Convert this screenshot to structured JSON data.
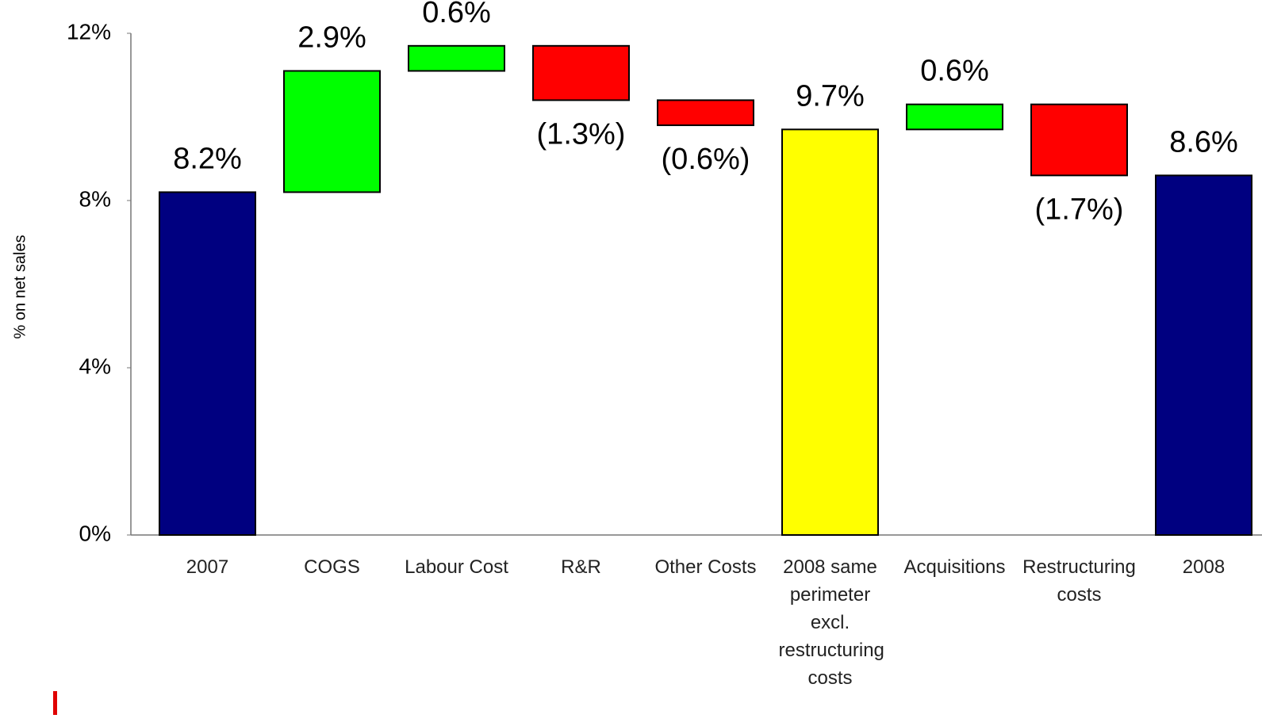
{
  "chart_data": {
    "type": "waterfall",
    "y_label": "% on net sales",
    "categories": [
      "2007",
      "COGS",
      "Labour Cost",
      "R&R",
      "Other Costs",
      "2008 same perimeter excl. restructuring costs",
      "Acquisitions",
      "Restructuring costs",
      "2008"
    ],
    "values": [
      8.2,
      2.9,
      0.6,
      -1.3,
      -0.6,
      9.7,
      0.6,
      -1.7,
      8.6
    ],
    "value_labels": [
      "8.2%",
      "2.9%",
      "0.6%",
      "(1.3%)",
      "(0.6%)",
      "9.7%",
      "0.6%",
      "(1.7%)",
      "8.6%"
    ],
    "totals": [
      0,
      5,
      8
    ],
    "colors": [
      "#000080",
      "#00ff00",
      "#00ff00",
      "#ff0000",
      "#ff0000",
      "#ffff00",
      "#00ff00",
      "#ff0000",
      "#000080"
    ],
    "ylim": [
      0,
      12
    ],
    "yticks": [
      {
        "value": 0,
        "label": "0%"
      },
      {
        "value": 4,
        "label": "4%"
      },
      {
        "value": 8,
        "label": "8%"
      },
      {
        "value": 12,
        "label": "12%"
      }
    ],
    "grid": false
  }
}
